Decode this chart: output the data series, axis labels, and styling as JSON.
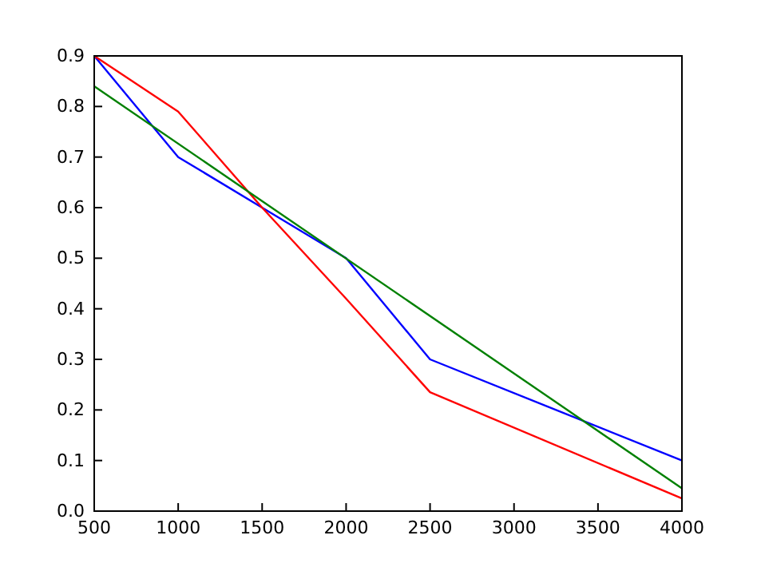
{
  "chart_data": {
    "type": "line",
    "x": [
      500,
      1000,
      1500,
      2000,
      2500,
      4000
    ],
    "xlim": [
      500,
      4000
    ],
    "xticks": [
      500,
      1000,
      1500,
      2000,
      2500,
      3000,
      3500,
      4000
    ],
    "ylim": [
      0,
      0.9
    ],
    "yticks": [
      {
        "value": 0,
        "label": "0.0"
      },
      0.1,
      0.2,
      0.3,
      0.4,
      0.5,
      0.6,
      0.7,
      0.8,
      0.9
    ],
    "series": [
      {
        "color": "#0000ff",
        "values": [
          0.9,
          0.7,
          0.6,
          0.5,
          0.3,
          0.1
        ]
      },
      {
        "color": "#ff0000",
        "values": [
          0.9,
          0.79,
          0.6,
          0.42,
          0.235,
          0.025
        ]
      },
      {
        "color": "#008000",
        "x": [
          500,
          4000
        ],
        "values": [
          0.84,
          0.045
        ]
      }
    ],
    "grid": false
  }
}
